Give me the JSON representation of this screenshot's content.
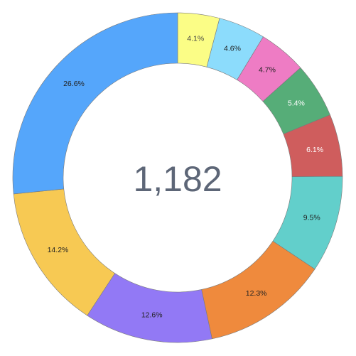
{
  "chart_data": {
    "type": "pie",
    "style": "donut",
    "center_label": "1,182",
    "start_angle_deg": 0,
    "direction": "clockwise",
    "slices": [
      {
        "label": "4.1%",
        "value": 4.1,
        "color": "#fbfd86",
        "label_color": "#444444"
      },
      {
        "label": "4.6%",
        "value": 4.6,
        "color": "#8cdcfc",
        "label_color": "#222222"
      },
      {
        "label": "4.7%",
        "value": 4.7,
        "color": "#ee7cc4",
        "label_color": "#222222"
      },
      {
        "label": "5.4%",
        "value": 5.4,
        "color": "#56ad78",
        "label_color": "#ffffff"
      },
      {
        "label": "6.1%",
        "value": 6.1,
        "color": "#cf5d5d",
        "label_color": "#ffffff"
      },
      {
        "label": "9.5%",
        "value": 9.5,
        "color": "#62cfcb",
        "label_color": "#222222"
      },
      {
        "label": "12.3%",
        "value": 12.3,
        "color": "#ef8a3d",
        "label_color": "#222222"
      },
      {
        "label": "12.6%",
        "value": 12.6,
        "color": "#9279f5",
        "label_color": "#222222"
      },
      {
        "label": "14.2%",
        "value": 14.2,
        "color": "#f7c953",
        "label_color": "#222222"
      },
      {
        "label": "26.6%",
        "value": 26.6,
        "color": "#55a6fb",
        "label_color": "#222222"
      }
    ]
  }
}
